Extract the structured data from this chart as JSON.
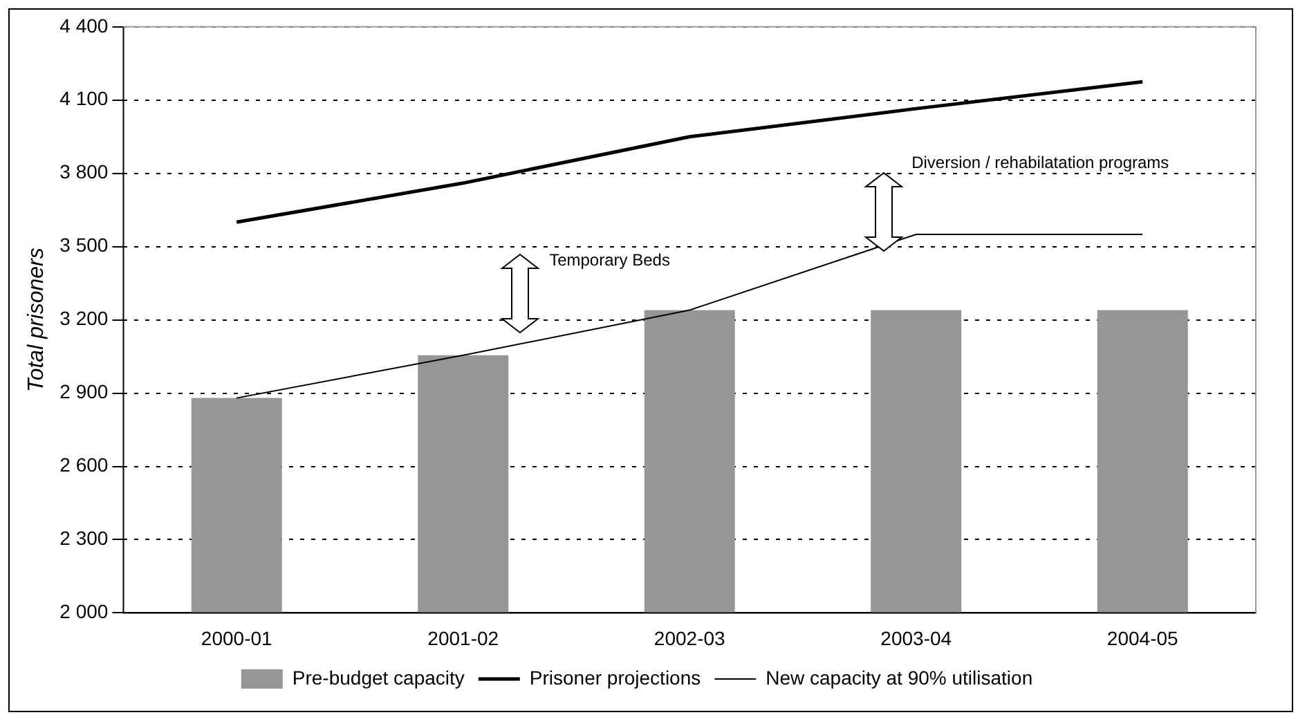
{
  "chart_data": {
    "type": "bar",
    "ylabel": "Total prisoners",
    "categories": [
      "2000-01",
      "2001-02",
      "2002-03",
      "2003-04",
      "2004-05"
    ],
    "series": [
      {
        "name": "Pre-budget capacity",
        "color": "#969696",
        "values": [
          2880,
          3055,
          3240,
          3240,
          3240
        ]
      },
      {
        "name": "Prisoner projections",
        "type": "line",
        "color": "#000000",
        "values": [
          3600,
          3760,
          3950,
          4065,
          4175
        ]
      },
      {
        "name": "New capacity at 90% utilisation",
        "type": "line",
        "color": "#000000",
        "values": [
          2880,
          3055,
          3240,
          3550,
          3550
        ]
      }
    ],
    "ylim": [
      2000,
      4400
    ],
    "yticks": [
      {
        "value": 2000,
        "label": "2 000"
      },
      {
        "value": 2300,
        "label": "2 300"
      },
      {
        "value": 2600,
        "label": "2 600"
      },
      {
        "value": 2900,
        "label": "2 900"
      },
      {
        "value": 3200,
        "label": "3 200"
      },
      {
        "value": 3500,
        "label": "3 500"
      },
      {
        "value": 3800,
        "label": "3 800"
      },
      {
        "value": 4100,
        "label": "4 100"
      },
      {
        "value": 4400,
        "label": "4 400"
      }
    ],
    "grid": "y",
    "legend": "bottom",
    "marker": "none",
    "annotations": [
      "Temporary Beds",
      "Diversion / rehabilatation programs"
    ]
  }
}
